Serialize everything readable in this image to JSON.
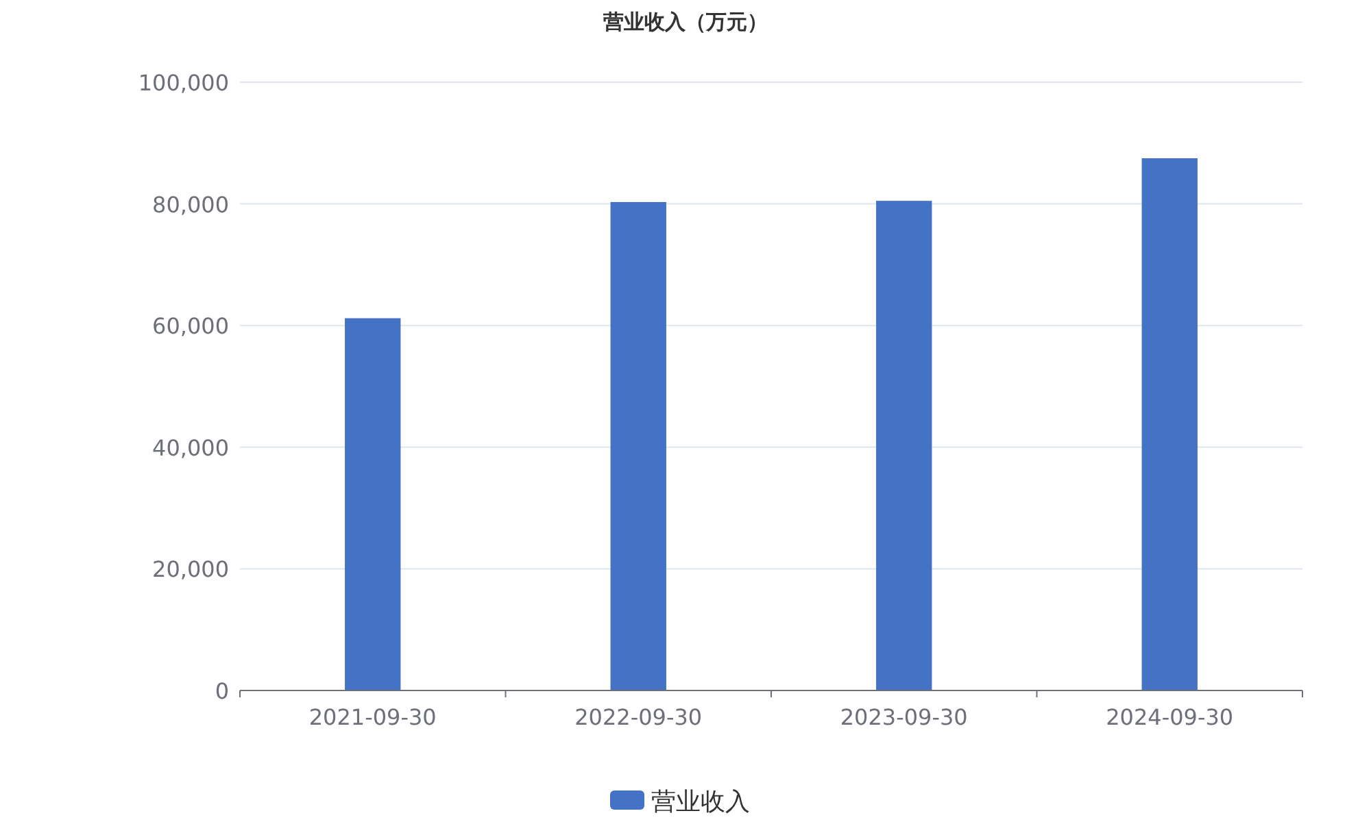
{
  "chart_data": {
    "type": "bar",
    "title": "营业收入（万元）",
    "categories": [
      "2021-09-30",
      "2022-09-30",
      "2023-09-30",
      "2024-09-30"
    ],
    "series": [
      {
        "name": "营业收入",
        "color": "#4472c4",
        "values": [
          61200,
          80300,
          80500,
          87500
        ]
      }
    ],
    "ylim": [
      0,
      100000
    ],
    "yticks": [
      {
        "value": 0,
        "label": "0"
      },
      {
        "value": 20000,
        "label": "20,000"
      },
      {
        "value": 40000,
        "label": "40,000"
      },
      {
        "value": 60000,
        "label": "60,000"
      },
      {
        "value": 80000,
        "label": "80,000"
      },
      {
        "value": 100000,
        "label": "100,000"
      }
    ],
    "grid": "y",
    "legend": "bottom"
  }
}
